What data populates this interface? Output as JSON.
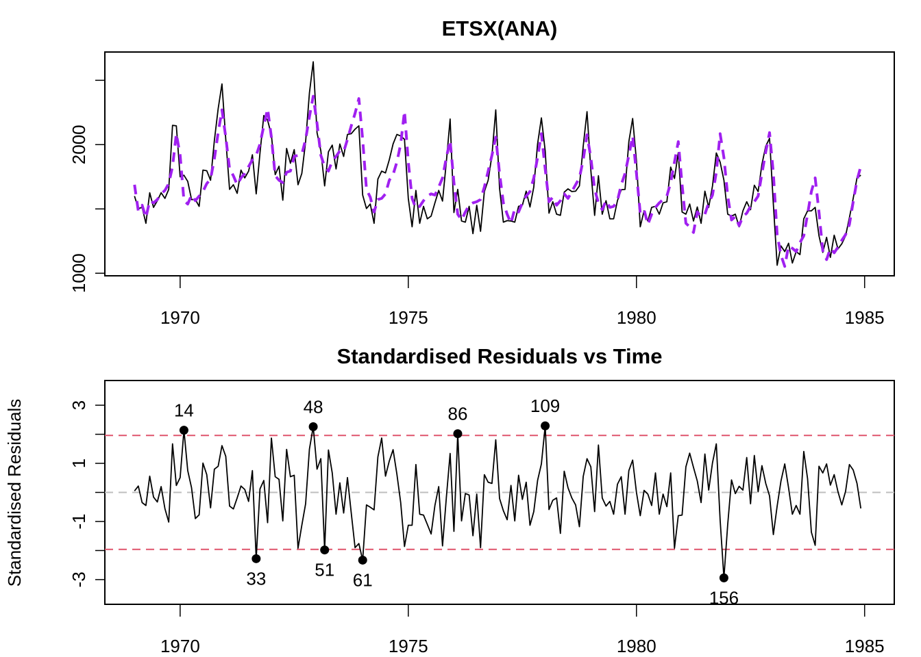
{
  "chart_data": [
    {
      "type": "line",
      "title": "ETSX(ANA)",
      "xlabel": "",
      "ylabel": "",
      "xlim": [
        1968.35,
        1985.65
      ],
      "ylim": [
        980,
        2720
      ],
      "x_ticks": [
        1970,
        1975,
        1980,
        1985
      ],
      "x_tick_labels": [
        "1970",
        "1975",
        "1980",
        "1985"
      ],
      "y_ticks": [
        1000,
        1500,
        2000,
        2500
      ],
      "y_tick_labels": [
        "1000",
        "",
        "2000",
        ""
      ],
      "grid": false,
      "legend": "none",
      "x_start": 1969.0,
      "frequency": 12,
      "series": [
        {
          "name": "Actuals",
          "color": "#000000",
          "style": "solid",
          "values": [
            1600,
            1503,
            1512,
            1388,
            1626,
            1512,
            1564,
            1626,
            1582,
            1652,
            2150,
            2146,
            1750,
            1762,
            1714,
            1573,
            1573,
            1520,
            1802,
            1797,
            1723,
            2032,
            2279,
            2472,
            2041,
            1652,
            1688,
            1621,
            1802,
            1741,
            1794,
            1921,
            1617,
            1935,
            2226,
            2190,
            2076,
            1767,
            1832,
            1568,
            1970,
            1855,
            1961,
            1688,
            1776,
            2023,
            2402,
            2644,
            2093,
            1952,
            1679,
            1944,
            1996,
            1811,
            2005,
            1908,
            2079,
            2085,
            2120,
            2146,
            1608,
            1503,
            1538,
            1388,
            1732,
            1794,
            1780,
            1882,
            2005,
            2079,
            2067,
            2041,
            1582,
            1361,
            1644,
            1388,
            1520,
            1423,
            1444,
            1547,
            1644,
            1561,
            1864,
            2199,
            1472,
            1652,
            1406,
            1397,
            1520,
            1308,
            1529,
            1326,
            1635,
            1723,
            1917,
            2270,
            1661,
            1397,
            1409,
            1406,
            1397,
            1520,
            1529,
            1638,
            1515,
            1670,
            2005,
            2208,
            1952,
            1467,
            1556,
            1459,
            1450,
            1630,
            1656,
            1635,
            1638,
            1679,
            1988,
            2256,
            1802,
            1450,
            1758,
            1459,
            1564,
            1423,
            1423,
            1564,
            1649,
            1652,
            2023,
            2203,
            1873,
            1361,
            1485,
            1406,
            1512,
            1520,
            1459,
            1547,
            1556,
            1825,
            1737,
            1938,
            1476,
            1459,
            1538,
            1406,
            1515,
            1388,
            1638,
            1512,
            1679,
            1935,
            1864,
            1723,
            1459,
            1444,
            1459,
            1361,
            1485,
            1556,
            1494,
            1684,
            1635,
            1847,
            1988,
            2049,
            1538,
            1062,
            1212,
            1168,
            1233,
            1079,
            1168,
            1145,
            1423,
            1485,
            1485,
            1512,
            1291,
            1162,
            1279,
            1123,
            1296,
            1189,
            1229,
            1291,
            1432,
            1582,
            1741,
            1762
          ]
        },
        {
          "name": "Fitted",
          "color": "#A020F0",
          "style": "dashed",
          "values": [
            1688,
            1485,
            1529,
            1432,
            1564,
            1547,
            1573,
            1617,
            1644,
            1697,
            1829,
            2085,
            1917,
            1564,
            1538,
            1608,
            1564,
            1600,
            1635,
            1697,
            1732,
            1890,
            2093,
            2270,
            2058,
            1811,
            1758,
            1688,
            1741,
            1776,
            1829,
            1882,
            1917,
            2005,
            2146,
            2279,
            2058,
            1758,
            1723,
            1705,
            1785,
            1794,
            1908,
            1917,
            1926,
            2041,
            2217,
            2376,
            2164,
            1917,
            1829,
            1794,
            1873,
            1908,
            1952,
            1944,
            2041,
            2146,
            2243,
            2358,
            2041,
            1652,
            1591,
            1476,
            1573,
            1582,
            1617,
            1723,
            1767,
            1864,
            2005,
            2261,
            1864,
            1582,
            1503,
            1520,
            1564,
            1600,
            1617,
            1608,
            1670,
            1741,
            1899,
            2032,
            1705,
            1459,
            1414,
            1476,
            1529,
            1547,
            1556,
            1573,
            1670,
            1794,
            1917,
            2058,
            1776,
            1547,
            1459,
            1388,
            1503,
            1476,
            1547,
            1600,
            1635,
            1741,
            1899,
            2085,
            1811,
            1556,
            1591,
            1529,
            1564,
            1617,
            1582,
            1635,
            1688,
            1741,
            1882,
            2076,
            1899,
            1652,
            1547,
            1494,
            1564,
            1512,
            1520,
            1564,
            1688,
            1776,
            1917,
            2067,
            1776,
            1467,
            1494,
            1379,
            1459,
            1512,
            1547,
            1573,
            1600,
            1705,
            1864,
            2023,
            1688,
            1388,
            1361,
            1317,
            1476,
            1441,
            1459,
            1547,
            1608,
            1785,
            2085,
            1899,
            1600,
            1414,
            1441,
            1370,
            1441,
            1467,
            1520,
            1556,
            1600,
            1776,
            1944,
            2093,
            1776,
            1300,
            1141,
            1053,
            1212,
            1194,
            1168,
            1238,
            1291,
            1459,
            1635,
            1741,
            1476,
            1176,
            1106,
            1194,
            1159,
            1203,
            1256,
            1300,
            1379,
            1556,
            1723,
            1832
          ]
        }
      ]
    },
    {
      "type": "line",
      "title": "Standardised Residuals vs Time",
      "xlabel": "",
      "ylabel": "Standardised Residuals",
      "xlim": [
        1968.35,
        1985.65
      ],
      "ylim": [
        -3.85,
        3.85
      ],
      "x_ticks": [
        1970,
        1975,
        1980,
        1985
      ],
      "x_tick_labels": [
        "1970",
        "1975",
        "1980",
        "1985"
      ],
      "y_ticks": [
        -3,
        -2,
        -1,
        0,
        1,
        2,
        3
      ],
      "y_tick_labels": [
        "-3",
        "",
        "-1",
        "",
        "1",
        "",
        "3"
      ],
      "grid": false,
      "legend": "none",
      "x_start": 1969.0,
      "frequency": 12,
      "bounds": [
        -1.96,
        1.96
      ],
      "bounds_color": "#DF536B",
      "zero_line_color": "#BEBEBE",
      "series": [
        {
          "name": "Residuals",
          "color": "#000000",
          "values": [
            0.05,
            0.22,
            -0.35,
            -0.45,
            0.56,
            -0.16,
            -0.33,
            0.2,
            -0.56,
            -1.02,
            1.67,
            0.24,
            0.51,
            2.14,
            0.75,
            0.16,
            -0.9,
            -0.77,
            1.01,
            0.61,
            -0.53,
            0.8,
            0.9,
            1.61,
            1.24,
            -0.47,
            -0.57,
            -0.19,
            0.22,
            0.1,
            -0.31,
            0.75,
            -2.28,
            0.12,
            0.41,
            -1.04,
            1.87,
            0.54,
            0.45,
            -0.98,
            1.48,
            0.54,
            0.59,
            -1.92,
            -1.13,
            -0.39,
            1.49,
            2.26,
            0.8,
            1.16,
            -1.98,
            1.46,
            0.67,
            -0.75,
            0.33,
            -0.71,
            0.51,
            -0.71,
            -1.9,
            -1.76,
            -2.33,
            -0.43,
            -0.51,
            -0.6,
            1.22,
            1.87,
            0.56,
            1.08,
            1.47,
            0.63,
            -0.35,
            -1.86,
            -1.13,
            -1.13,
            0.96,
            -0.75,
            -0.78,
            -1.1,
            -1.43,
            -0.45,
            0.2,
            -1.84,
            -0.19,
            1.34,
            -1.34,
            2.02,
            -0.98,
            -0.04,
            -0.09,
            -1.49,
            -0.06,
            -1.9,
            0.61,
            0.35,
            0.31,
            1.81,
            -0.21,
            -0.63,
            -0.94,
            0.24,
            -0.98,
            0.59,
            -0.24,
            0.35,
            -1.13,
            -0.66,
            0.41,
            0.98,
            2.29,
            -0.59,
            -0.27,
            -0.19,
            -1.41,
            0.73,
            0.16,
            -0.19,
            -0.43,
            -1.18,
            0.55,
            1.16,
            0.88,
            -0.66,
            1.63,
            -0.19,
            -0.47,
            -0.31,
            -0.75,
            0.28,
            0.54,
            -0.75,
            0.75,
            1.11,
            0,
            -0.8,
            0.07,
            -0.06,
            -0.45,
            0.67,
            -0.75,
            -0.06,
            -0.49,
            0.67,
            -1.92,
            -0.8,
            -0.78,
            0.88,
            1.35,
            0.86,
            0.39,
            -0.35,
            1.32,
            0.08,
            1.02,
            1.67,
            -0.94,
            -2.94,
            -1.1,
            0.43,
            -0.04,
            0.21,
            0.08,
            1.2,
            -0.39,
            1.27,
            0.02,
            0.92,
            0.31,
            -0.12,
            -1.45,
            -0.47,
            0.39,
            0.98,
            0.16,
            -0.75,
            -0.45,
            -0.75,
            1.41,
            0.47,
            -1.37,
            -1.82,
            0.9,
            0.67,
            0.98,
            0.25,
            0.61,
            0.02,
            -0.43,
            0.04,
            0.96,
            0.77,
            0.31,
            -0.55
          ]
        }
      ],
      "outliers": [
        {
          "index": 14,
          "label": "14",
          "position": "above"
        },
        {
          "index": 33,
          "label": "33",
          "position": "below"
        },
        {
          "index": 48,
          "label": "48",
          "position": "above"
        },
        {
          "index": 51,
          "label": "51",
          "position": "below"
        },
        {
          "index": 61,
          "label": "61",
          "position": "below"
        },
        {
          "index": 86,
          "label": "86",
          "position": "above"
        },
        {
          "index": 109,
          "label": "109",
          "position": "above"
        },
        {
          "index": 156,
          "label": "156",
          "position": "below"
        }
      ]
    }
  ]
}
